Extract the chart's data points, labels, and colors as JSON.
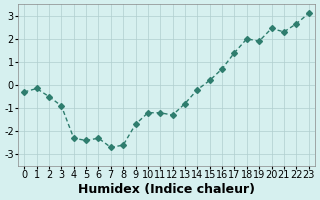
{
  "x": [
    0,
    1,
    2,
    3,
    4,
    5,
    6,
    7,
    8,
    9,
    10,
    11,
    12,
    13,
    14,
    15,
    16,
    17,
    18,
    19,
    20,
    21,
    22,
    23
  ],
  "y": [
    -0.3,
    -0.15,
    -0.5,
    -0.9,
    -2.3,
    -2.4,
    -2.3,
    -2.7,
    -2.6,
    -1.7,
    -1.2,
    -1.2,
    -1.3,
    -0.8,
    -0.2,
    0.2,
    0.7,
    1.4,
    2.0,
    1.9,
    2.45,
    2.3,
    2.65,
    3.1
  ],
  "line_color": "#2e7d6e",
  "marker": "D",
  "marker_size": 3,
  "linewidth": 1.0,
  "bg_color": "#d6f0ef",
  "grid_color": "#b0cece",
  "xlabel": "Humidex (Indice chaleur)",
  "xlabel_fontsize": 9,
  "tick_fontsize": 7,
  "ylim": [
    -3.5,
    3.5
  ],
  "xlim": [
    -0.5,
    23.5
  ],
  "yticks": [
    -3,
    -2,
    -1,
    0,
    1,
    2,
    3
  ],
  "xticks": [
    0,
    1,
    2,
    3,
    4,
    5,
    6,
    7,
    8,
    9,
    10,
    11,
    12,
    13,
    14,
    15,
    16,
    17,
    18,
    19,
    20,
    21,
    22,
    23
  ]
}
